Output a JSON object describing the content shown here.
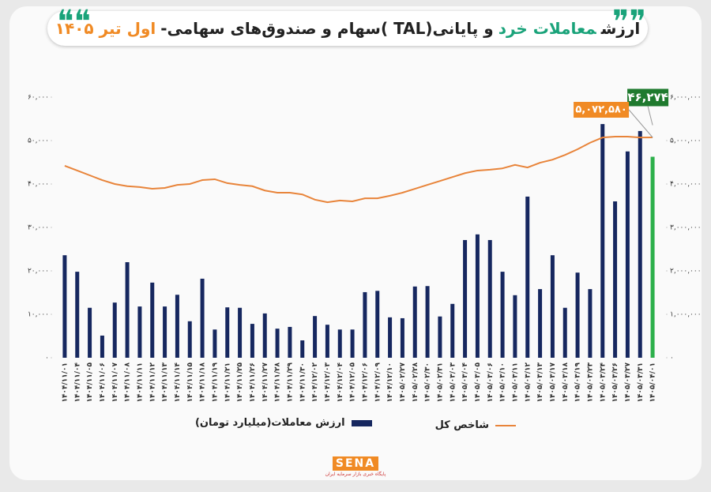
{
  "chart_data": {
    "type": "combo",
    "title_parts": [
      {
        "text": "ارزش",
        "color": "#222222"
      },
      {
        "text": "معاملات خرد",
        "color": "#1aa37a"
      },
      {
        "text": "و پایانی(TAL )سهام و صندوق‌های سهامی-",
        "color": "#222222"
      },
      {
        "text": "اول تیر ۱۴۰۵",
        "color": "#f08a24"
      }
    ],
    "categories": [
      "۱۴۰۴/۱۱/۰۱",
      "۱۴۰۴/۱۱/۰۴",
      "۱۴۰۴/۱۱/۰۵",
      "۱۴۰۴/۱۱/۰۶",
      "۱۴۰۴/۱۱/۰۷",
      "۱۴۰۴/۱۱/۰۸",
      "۱۴۰۴/۱۱/۱۱",
      "۱۴۰۴/۱۱/۱۲",
      "۱۴۰۴/۱۱/۱۳",
      "۱۴۰۴/۱۱/۱۴",
      "۱۴۰۴/۱۱/۱۵",
      "۱۴۰۴/۱۱/۱۸",
      "۱۴۰۴/۱۱/۱۹",
      "۱۴۰۴/۱۱/۲۱",
      "۱۴۰۴/۱۱/۲۵",
      "۱۴۰۴/۱۱/۲۶",
      "۱۴۰۴/۱۱/۲۷",
      "۱۴۰۴/۱۱/۲۸",
      "۱۴۰۴/۱۱/۲۹",
      "۱۴۰۴/۱۱/۳۰",
      "۱۴۰۴/۱۲/۰۲",
      "۱۴۰۴/۱۲/۰۳",
      "۱۴۰۴/۱۲/۰۴",
      "۱۴۰۴/۱۲/۰۵",
      "۱۴۰۴/۱۲/۰۶",
      "۱۴۰۴/۱۲/۰۹",
      "۱۴۰۴/۱۲/۱۰",
      "۱۴۰۵/۰۲/۲۷",
      "۱۴۰۵/۰۲/۲۸",
      "۱۴۰۵/۰۲/۳۰",
      "۱۴۰۵/۰۲/۳۱",
      "۱۴۰۵/۰۳/۰۳",
      "۱۴۰۵/۰۳/۰۴",
      "۱۴۰۵/۰۳/۰۵",
      "۱۴۰۵/۰۳/۰۶",
      "۱۴۰۵/۰۳/۱۰",
      "۱۴۰۵/۰۳/۱۱",
      "۱۴۰۵/۰۳/۱۲",
      "۱۴۰۵/۰۳/۱۳",
      "۱۴۰۵/۰۳/۱۷",
      "۱۴۰۵/۰۳/۱۸",
      "۱۴۰۵/۰۳/۱۹",
      "۱۴۰۵/۰۳/۲۳",
      "۱۴۰۵/۰۳/۲۴",
      "۱۴۰۵/۰۳/۲۶",
      "۱۴۰۵/۰۳/۲۷",
      "۱۴۰۵/۰۳/۳۱",
      "۱۴۰۵/۰۴/۰۱"
    ],
    "series": [
      {
        "name": "ارزش معاملات(میلیارد تومان)",
        "type": "bar",
        "color": "#16275f",
        "colors": [
          "#16275f",
          "#16275f",
          "#16275f",
          "#16275f",
          "#16275f",
          "#16275f",
          "#16275f",
          "#16275f",
          "#16275f",
          "#16275f",
          "#16275f",
          "#16275f",
          "#16275f",
          "#16275f",
          "#16275f",
          "#16275f",
          "#16275f",
          "#16275f",
          "#16275f",
          "#16275f",
          "#16275f",
          "#16275f",
          "#16275f",
          "#16275f",
          "#16275f",
          "#16275f",
          "#16275f",
          "#16275f",
          "#16275f",
          "#16275f",
          "#16275f",
          "#16275f",
          "#16275f",
          "#16275f",
          "#16275f",
          "#16275f",
          "#16275f",
          "#16275f",
          "#16275f",
          "#16275f",
          "#16275f",
          "#16275f",
          "#16275f",
          "#16275f",
          "#16275f",
          "#16275f",
          "#16275f",
          "#2db04b"
        ],
        "values": [
          23600,
          19800,
          11500,
          5100,
          12700,
          22000,
          11800,
          17300,
          11800,
          14500,
          8400,
          18200,
          6500,
          11600,
          11500,
          7800,
          10200,
          6700,
          7100,
          4000,
          9600,
          7600,
          6500,
          6500,
          15100,
          15400,
          9300,
          9100,
          16400,
          16500,
          9500,
          12400,
          27100,
          28400,
          27100,
          19800,
          14400,
          37100,
          15800,
          23600,
          11500,
          19600,
          15800,
          53800,
          36000,
          47500,
          52200,
          46274
        ],
        "value_labels": [
          null,
          null,
          null,
          null,
          null,
          null,
          null,
          null,
          null,
          null,
          null,
          null,
          null,
          null,
          null,
          null,
          null,
          null,
          null,
          null,
          null,
          null,
          null,
          null,
          null,
          null,
          null,
          null,
          null,
          null,
          null,
          null,
          null,
          null,
          null,
          null,
          null,
          null,
          null,
          null,
          null,
          null,
          null,
          null,
          null,
          null,
          null,
          "۴۶,۲۷۴"
        ],
        "label_color": "#1f7a2e"
      },
      {
        "name": "شاخص کل",
        "type": "line",
        "axis": "y2",
        "color": "#e8843a",
        "values": [
          4420000,
          4310000,
          4200000,
          4090000,
          4000000,
          3950000,
          3930000,
          3890000,
          3910000,
          3980000,
          4000000,
          4090000,
          4110000,
          4020000,
          3980000,
          3950000,
          3850000,
          3800000,
          3800000,
          3760000,
          3640000,
          3580000,
          3620000,
          3600000,
          3670000,
          3670000,
          3730000,
          3800000,
          3890000,
          3980000,
          4070000,
          4160000,
          4250000,
          4310000,
          4330000,
          4360000,
          4440000,
          4380000,
          4490000,
          4560000,
          4670000,
          4800000,
          4950000,
          5070000,
          5090000,
          5090000,
          5070000,
          5072580
        ],
        "value_labels": [
          null,
          null,
          null,
          null,
          null,
          null,
          null,
          null,
          null,
          null,
          null,
          null,
          null,
          null,
          null,
          null,
          null,
          null,
          null,
          null,
          null,
          null,
          null,
          null,
          null,
          null,
          null,
          null,
          null,
          null,
          null,
          null,
          null,
          null,
          null,
          null,
          null,
          null,
          null,
          null,
          null,
          null,
          null,
          null,
          null,
          null,
          null,
          "۵,۰۷۲,۵۸۰"
        ],
        "label_color": "#f08a24"
      }
    ],
    "ylim": [
      0,
      60000
    ],
    "yticks": [
      {
        "value": 0,
        "label": "۰"
      },
      {
        "value": 10000,
        "label": "۱۰,۰۰۰"
      },
      {
        "value": 20000,
        "label": "۲۰,۰۰۰"
      },
      {
        "value": 30000,
        "label": "۳۰,۰۰۰"
      },
      {
        "value": 40000,
        "label": "۴۰,۰۰۰"
      },
      {
        "value": 50000,
        "label": "۵۰,۰۰۰"
      },
      {
        "value": 60000,
        "label": "۶۰,۰۰۰"
      }
    ],
    "y2lim": [
      0,
      6000000
    ],
    "y2ticks": [
      {
        "value": 0,
        "label": "۰"
      },
      {
        "value": 1000000,
        "label": "۱,۰۰۰,۰۰۰"
      },
      {
        "value": 2000000,
        "label": "۲,۰۰۰,۰۰۰"
      },
      {
        "value": 3000000,
        "label": "۳,۰۰۰,۰۰۰"
      },
      {
        "value": 4000000,
        "label": "۴,۰۰۰,۰۰۰"
      },
      {
        "value": 5000000,
        "label": "۵,۰۰۰,۰۰۰"
      },
      {
        "value": 6000000,
        "label": "۶,۰۰۰,۰۰۰"
      }
    ],
    "grid": false,
    "legend": "bottom",
    "logo": "SENA",
    "source": "پایگاه خبری بازار سرمایه ایران"
  }
}
